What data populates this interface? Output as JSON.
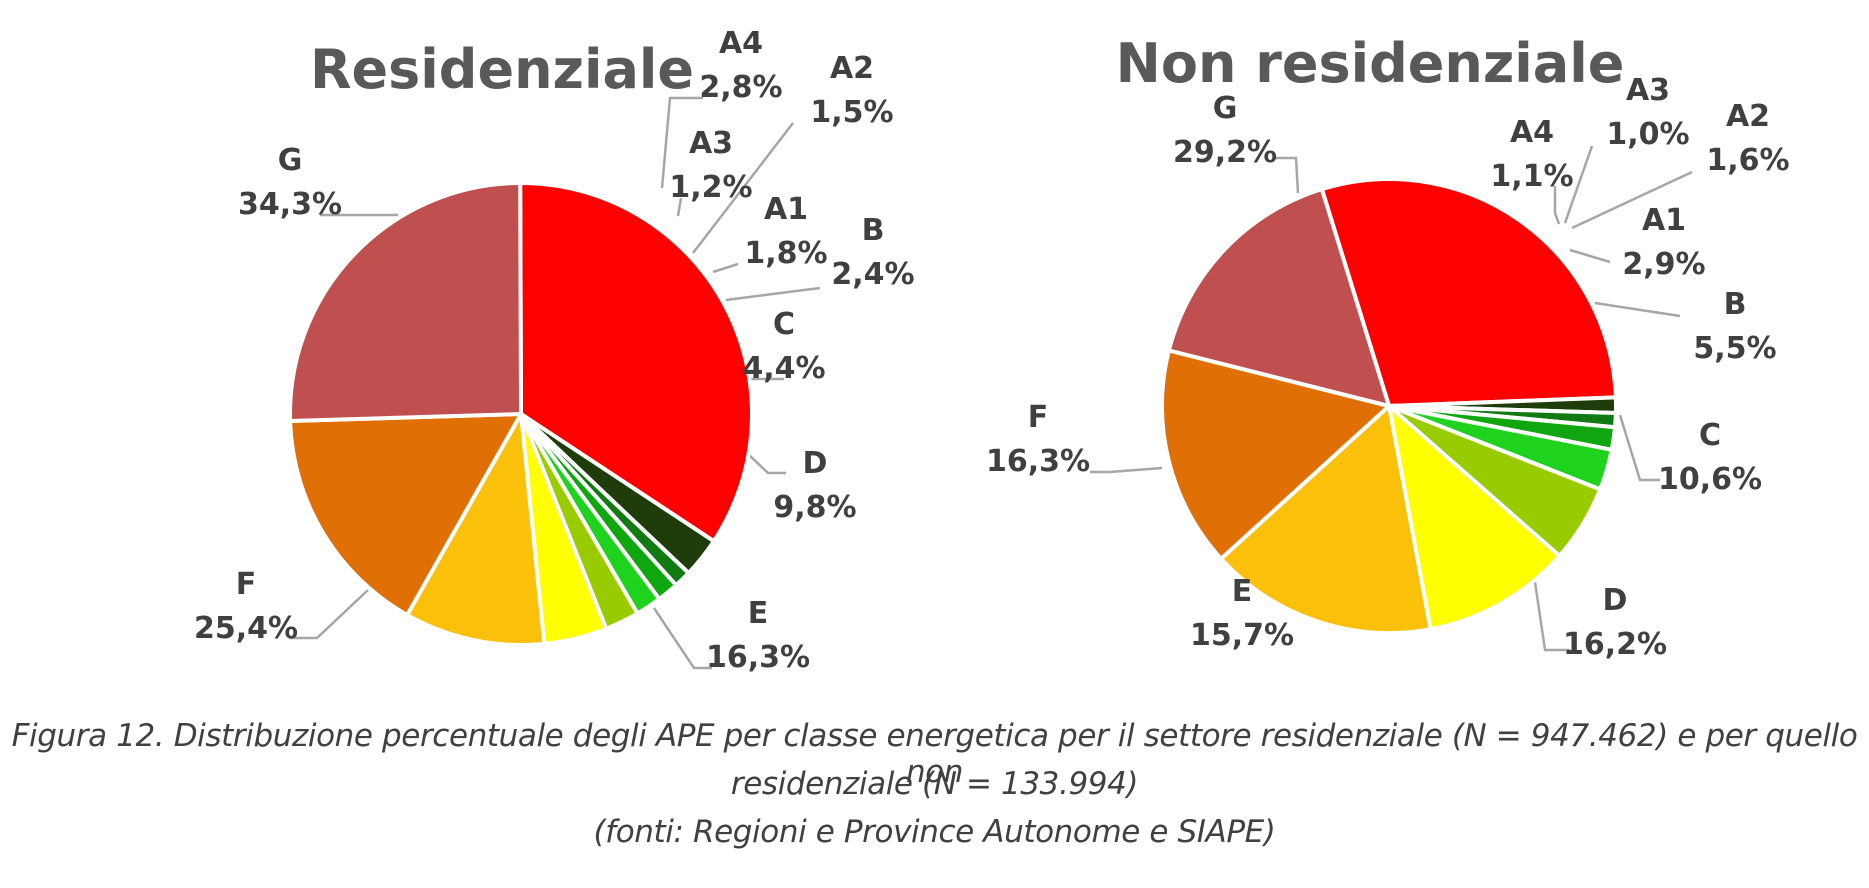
{
  "chart_data": [
    {
      "type": "pie",
      "title": "Residenziale",
      "slices": [
        {
          "label": "G",
          "value": 34.3,
          "value_text": "34,3%",
          "color": "#FF0000"
        },
        {
          "label": "A4",
          "value": 2.8,
          "value_text": "2,8%",
          "color": "#1E3D0A"
        },
        {
          "label": "A3",
          "value": 1.2,
          "value_text": "1,2%",
          "color": "#127A12"
        },
        {
          "label": "A2",
          "value": 1.5,
          "value_text": "1,5%",
          "color": "#0FA60F"
        },
        {
          "label": "A1",
          "value": 1.8,
          "value_text": "1,8%",
          "color": "#1ED21E"
        },
        {
          "label": "B",
          "value": 2.4,
          "value_text": "2,4%",
          "color": "#99CC00"
        },
        {
          "label": "C",
          "value": 4.4,
          "value_text": "4,4%",
          "color": "#FFFF00"
        },
        {
          "label": "D",
          "value": 9.8,
          "value_text": "9,8%",
          "color": "#FBC00A"
        },
        {
          "label": "E",
          "value": 16.3,
          "value_text": "16,3%",
          "color": "#E06F06"
        },
        {
          "label": "F",
          "value": 25.4,
          "value_text": "25,4%",
          "color": "#C04F50"
        }
      ]
    },
    {
      "type": "pie",
      "title": "Non residenziale",
      "slices": [
        {
          "label": "G",
          "value": 29.2,
          "value_text": "29,2%",
          "color": "#FF0000"
        },
        {
          "label": "A4",
          "value": 1.1,
          "value_text": "1,1%",
          "color": "#1E3D0A"
        },
        {
          "label": "A3",
          "value": 1.0,
          "value_text": "1,0%",
          "color": "#127A12"
        },
        {
          "label": "A2",
          "value": 1.6,
          "value_text": "1,6%",
          "color": "#0FA60F"
        },
        {
          "label": "A1",
          "value": 2.9,
          "value_text": "2,9%",
          "color": "#1ED21E"
        },
        {
          "label": "B",
          "value": 5.5,
          "value_text": "5,5%",
          "color": "#99CC00"
        },
        {
          "label": "C",
          "value": 10.6,
          "value_text": "10,6%",
          "color": "#FFFF00"
        },
        {
          "label": "D",
          "value": 16.2,
          "value_text": "16,2%",
          "color": "#FBC00A"
        },
        {
          "label": "E",
          "value": 15.7,
          "value_text": "15,7%",
          "color": "#E06F06"
        },
        {
          "label": "F",
          "value": 16.3,
          "value_text": "16,3%",
          "color": "#C04F50"
        }
      ]
    }
  ],
  "caption": {
    "line1": "Figura 12. Distribuzione percentuale degli APE per classe energetica per il settore residenziale (N = 947.462) e per quello non",
    "line2": "residenziale (N = 133.994)",
    "line3": "(fonti: Regioni e Province Autonome e SIAPE)"
  }
}
